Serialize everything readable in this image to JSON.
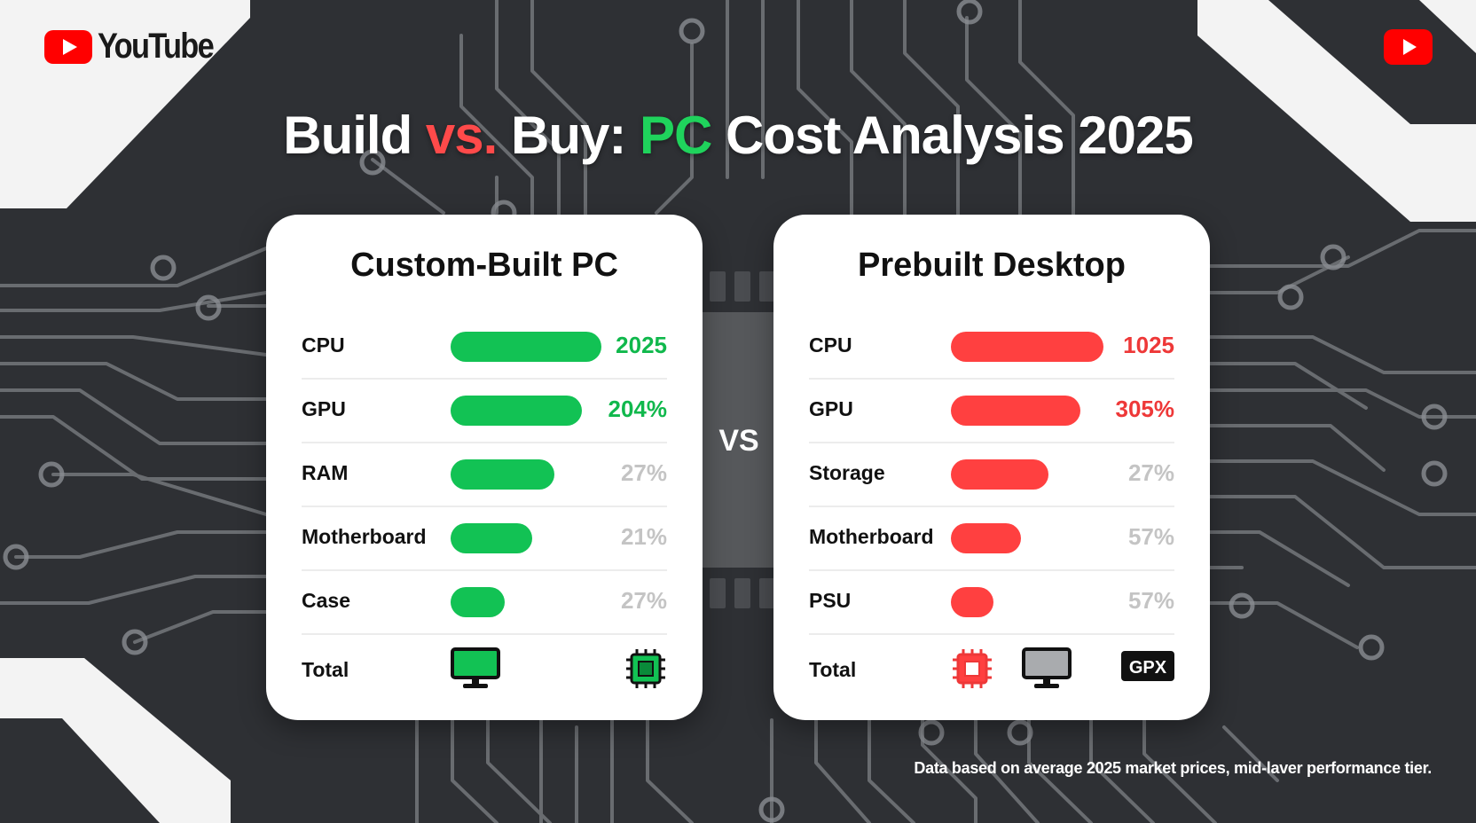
{
  "brand": {
    "name": "YouTube"
  },
  "title": {
    "part1": "Build ",
    "vs": "vs.",
    "part2": " Buy: ",
    "pc": "PC",
    "part3": " Cost Analysis 2025"
  },
  "vs_label": "VS",
  "colors": {
    "green": "#12c254",
    "red": "#ff4040",
    "youtube_red": "#ff0000",
    "background": "#2e3034"
  },
  "left_card": {
    "title": "Custom-Built PC",
    "rows": [
      {
        "label": "CPU",
        "value": "2025",
        "bar_fraction": 1.0,
        "value_style": "green"
      },
      {
        "label": "GPU",
        "value": "204%",
        "bar_fraction": 0.87,
        "value_style": "green"
      },
      {
        "label": "RAM",
        "value": "27%",
        "bar_fraction": 0.69,
        "value_style": "grey"
      },
      {
        "label": "Motherboard",
        "value": "21%",
        "bar_fraction": 0.54,
        "value_style": "grey"
      },
      {
        "label": "Case",
        "value": "27%",
        "bar_fraction": 0.36,
        "value_style": "grey"
      }
    ],
    "total_label": "Total",
    "total_icons": [
      "monitor-icon",
      "cpu-chip-icon"
    ]
  },
  "right_card": {
    "title": "Prebuilt Desktop",
    "rows": [
      {
        "label": "CPU",
        "value": "1025",
        "bar_fraction": 1.0,
        "value_style": "red"
      },
      {
        "label": "GPU",
        "value": "305%",
        "bar_fraction": 0.85,
        "value_style": "red"
      },
      {
        "label": "Storage",
        "value": "27%",
        "bar_fraction": 0.64,
        "value_style": "grey"
      },
      {
        "label": "Motherboard",
        "value": "57%",
        "bar_fraction": 0.46,
        "value_style": "grey"
      },
      {
        "label": "PSU",
        "value": "57%",
        "bar_fraction": 0.28,
        "value_style": "grey"
      }
    ],
    "total_label": "Total",
    "total_icons": [
      "cpu-chip-icon",
      "monitor-icon",
      "gpu-icon"
    ],
    "gpu_badge": "GPX"
  },
  "footnote": "Data based on average 2025 market prices, mid-laver performance tier."
}
